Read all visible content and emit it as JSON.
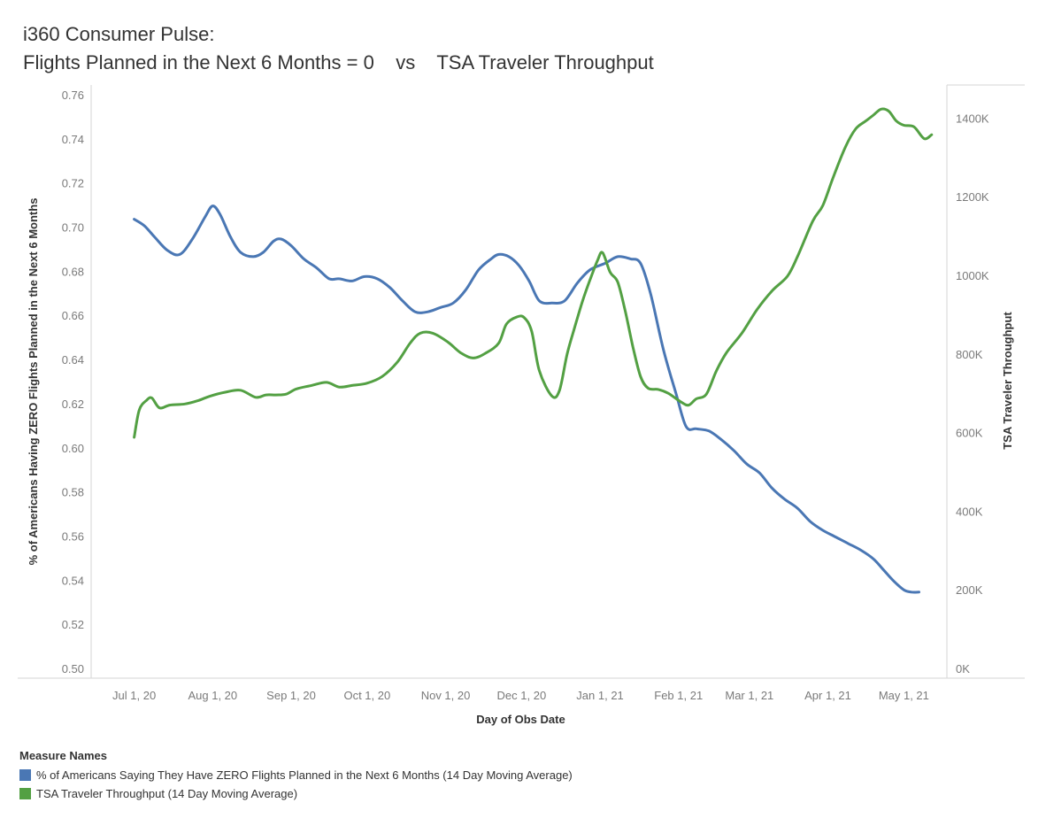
{
  "chart_data": {
    "type": "line",
    "title": "i360 Consumer Pulse:",
    "subtitle": "Flights Planned in the Next 6 Months = 0    vs    TSA Traveler Throughput",
    "xlabel": "Day of Obs Date",
    "ylabel_left": "% of Americans Having ZERO Flights Planned in the Next 6 Months",
    "ylabel_right": "TSA Traveler Throughput",
    "x_ticks": [
      "Jul 1, 20",
      "Aug 1, 20",
      "Sep 1, 20",
      "Oct 1, 20",
      "Nov 1, 20",
      "Dec 1, 20",
      "Jan 1, 21",
      "Feb 1, 21",
      "Mar 1, 21",
      "Apr 1, 21",
      "May 1, 21"
    ],
    "x_tick_days": [
      0,
      31,
      62,
      92,
      123,
      153,
      184,
      215,
      243,
      274,
      304
    ],
    "x_range_days": [
      -17,
      321
    ],
    "ylim_left": [
      0.5,
      0.76
    ],
    "y_ticks_left": [
      "0.50",
      "0.52",
      "0.54",
      "0.56",
      "0.58",
      "0.60",
      "0.62",
      "0.64",
      "0.66",
      "0.68",
      "0.70",
      "0.72",
      "0.74",
      "0.76"
    ],
    "ylim_right": [
      0,
      1500
    ],
    "y_ticks_right": [
      "0K",
      "200K",
      "400K",
      "600K",
      "800K",
      "1000K",
      "1200K",
      "1400K"
    ],
    "y_tick_values_right": [
      0,
      200,
      400,
      600,
      800,
      1000,
      1200,
      1400
    ],
    "series": [
      {
        "name": "% of Americans Saying They Have ZERO Flights Planned in the Next 6 Months (14 Day Moving Average)",
        "color": "#4a77b4",
        "axis": "left",
        "points": [
          [
            0,
            0.704
          ],
          [
            4,
            0.701
          ],
          [
            8,
            0.696
          ],
          [
            13,
            0.69
          ],
          [
            18,
            0.688
          ],
          [
            23,
            0.695
          ],
          [
            28,
            0.705
          ],
          [
            31,
            0.71
          ],
          [
            34,
            0.706
          ],
          [
            38,
            0.696
          ],
          [
            42,
            0.689
          ],
          [
            47,
            0.687
          ],
          [
            51,
            0.689
          ],
          [
            55,
            0.694
          ],
          [
            58,
            0.695
          ],
          [
            62,
            0.692
          ],
          [
            67,
            0.686
          ],
          [
            72,
            0.682
          ],
          [
            77,
            0.677
          ],
          [
            81,
            0.677
          ],
          [
            86,
            0.676
          ],
          [
            91,
            0.678
          ],
          [
            96,
            0.677
          ],
          [
            101,
            0.673
          ],
          [
            106,
            0.667
          ],
          [
            111,
            0.662
          ],
          [
            116,
            0.662
          ],
          [
            121,
            0.664
          ],
          [
            126,
            0.666
          ],
          [
            131,
            0.672
          ],
          [
            136,
            0.681
          ],
          [
            141,
            0.686
          ],
          [
            144,
            0.688
          ],
          [
            148,
            0.687
          ],
          [
            152,
            0.683
          ],
          [
            156,
            0.676
          ],
          [
            160,
            0.667
          ],
          [
            165,
            0.666
          ],
          [
            170,
            0.667
          ],
          [
            175,
            0.675
          ],
          [
            180,
            0.681
          ],
          [
            186,
            0.684
          ],
          [
            191,
            0.687
          ],
          [
            196,
            0.686
          ],
          [
            200,
            0.684
          ],
          [
            204,
            0.67
          ],
          [
            209,
            0.645
          ],
          [
            214,
            0.625
          ],
          [
            218,
            0.61
          ],
          [
            222,
            0.609
          ],
          [
            227,
            0.608
          ],
          [
            232,
            0.604
          ],
          [
            237,
            0.599
          ],
          [
            242,
            0.593
          ],
          [
            247,
            0.589
          ],
          [
            252,
            0.582
          ],
          [
            257,
            0.577
          ],
          [
            262,
            0.573
          ],
          [
            267,
            0.567
          ],
          [
            272,
            0.563
          ],
          [
            277,
            0.56
          ],
          [
            282,
            0.557
          ],
          [
            287,
            0.554
          ],
          [
            292,
            0.55
          ],
          [
            296,
            0.545
          ],
          [
            300,
            0.54
          ],
          [
            304,
            0.536
          ],
          [
            307,
            0.535
          ],
          [
            310,
            0.535
          ]
        ]
      },
      {
        "name": "TSA Traveler Throughput (14 Day Moving Average)",
        "color": "#53a043",
        "axis": "right",
        "points": [
          [
            0,
            590
          ],
          [
            2,
            660
          ],
          [
            5,
            685
          ],
          [
            7,
            690
          ],
          [
            10,
            665
          ],
          [
            14,
            672
          ],
          [
            20,
            675
          ],
          [
            25,
            683
          ],
          [
            30,
            695
          ],
          [
            36,
            705
          ],
          [
            42,
            710
          ],
          [
            48,
            692
          ],
          [
            52,
            698
          ],
          [
            56,
            698
          ],
          [
            60,
            700
          ],
          [
            64,
            713
          ],
          [
            70,
            722
          ],
          [
            76,
            730
          ],
          [
            81,
            718
          ],
          [
            86,
            722
          ],
          [
            92,
            728
          ],
          [
            98,
            745
          ],
          [
            104,
            782
          ],
          [
            109,
            830
          ],
          [
            113,
            855
          ],
          [
            118,
            855
          ],
          [
            124,
            832
          ],
          [
            129,
            805
          ],
          [
            134,
            792
          ],
          [
            139,
            805
          ],
          [
            144,
            830
          ],
          [
            147,
            878
          ],
          [
            151,
            896
          ],
          [
            154,
            895
          ],
          [
            157,
            860
          ],
          [
            160,
            760
          ],
          [
            165,
            695
          ],
          [
            168,
            710
          ],
          [
            171,
            802
          ],
          [
            174,
            870
          ],
          [
            177,
            935
          ],
          [
            180,
            990
          ],
          [
            183,
            1040
          ],
          [
            185,
            1060
          ],
          [
            188,
            1010
          ],
          [
            191,
            985
          ],
          [
            194,
            910
          ],
          [
            197,
            820
          ],
          [
            200,
            745
          ],
          [
            203,
            715
          ],
          [
            207,
            712
          ],
          [
            211,
            702
          ],
          [
            216,
            680
          ],
          [
            219,
            672
          ],
          [
            222,
            688
          ],
          [
            226,
            700
          ],
          [
            230,
            760
          ],
          [
            234,
            806
          ],
          [
            240,
            855
          ],
          [
            246,
            915
          ],
          [
            252,
            963
          ],
          [
            258,
            1000
          ],
          [
            262,
            1050
          ],
          [
            268,
            1140
          ],
          [
            272,
            1180
          ],
          [
            276,
            1250
          ],
          [
            281,
            1330
          ],
          [
            285,
            1375
          ],
          [
            289,
            1395
          ],
          [
            292,
            1410
          ],
          [
            295,
            1425
          ],
          [
            298,
            1420
          ],
          [
            301,
            1395
          ],
          [
            304,
            1384
          ],
          [
            308,
            1380
          ],
          [
            312,
            1350
          ],
          [
            315,
            1360
          ]
        ]
      }
    ]
  },
  "legend": {
    "title": "Measure Names",
    "items": [
      {
        "label": "% of Americans Saying They Have ZERO Flights Planned in the Next 6 Months (14 Day Moving Average)",
        "color": "#4a77b4"
      },
      {
        "label": "TSA Traveler Throughput (14 Day Moving Average)",
        "color": "#53a043"
      }
    ]
  }
}
